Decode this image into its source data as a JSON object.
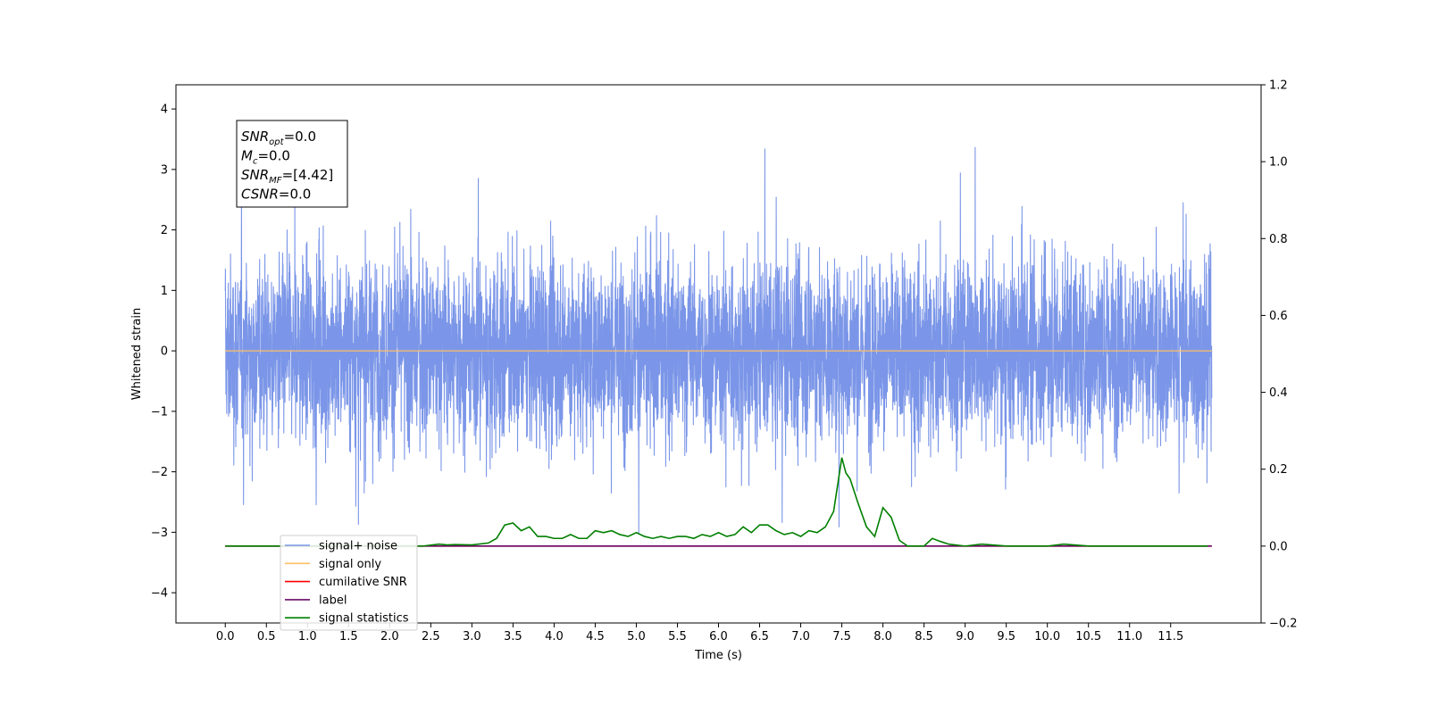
{
  "chart_data": {
    "type": "line",
    "xlabel": "Time (s)",
    "ylabel": "Whitened strain",
    "xlim": [
      -0.6,
      12.6
    ],
    "ylim": [
      -4.5,
      4.4
    ],
    "ylim_right": [
      -0.2,
      1.2
    ],
    "x_ticks": [
      "0.0",
      "0.5",
      "1.0",
      "1.5",
      "2.0",
      "2.5",
      "3.0",
      "3.5",
      "4.0",
      "4.5",
      "5.0",
      "5.5",
      "6.0",
      "6.5",
      "7.0",
      "7.5",
      "8.0",
      "8.5",
      "9.0",
      "9.5",
      "10.0",
      "10.5",
      "11.0",
      "11.5"
    ],
    "y_ticks_left": [
      "4",
      "3",
      "2",
      "1",
      "0",
      "−1",
      "−2",
      "−3",
      "−4"
    ],
    "y_ticks_right": [
      "1.2",
      "1.0",
      "0.8",
      "0.6",
      "0.4",
      "0.2",
      "0.0",
      "−0.2"
    ],
    "grid": false,
    "legend_position": "bottom-left",
    "annotation": {
      "lines": [
        {
          "base": "SNR",
          "sub": "opt",
          "value": "=0.0"
        },
        {
          "base": "M",
          "sub": "c",
          "value": "=0.0"
        },
        {
          "base": "SNR",
          "sub": "MF",
          "value": "=[4.42]"
        },
        {
          "base": "CSNR",
          "sub": "",
          "value": "=0.0"
        }
      ]
    },
    "series": [
      {
        "name": "signal+ noise",
        "color": "#7b96e8",
        "axis": "left",
        "note": "noise, amplitude approx ±2 to ±4",
        "x_range": [
          0.0,
          12.0
        ]
      },
      {
        "name": "signal only",
        "color": "#ffbf66",
        "axis": "left",
        "x": [
          0.0,
          12.0
        ],
        "values": [
          0.0,
          0.0
        ]
      },
      {
        "name": "cumilative SNR",
        "color": "#ff0000",
        "axis": "right",
        "x": [
          0.0,
          12.0
        ],
        "values": [
          0.0,
          0.0
        ]
      },
      {
        "name": "label",
        "color": "#6a0a6a",
        "axis": "right",
        "x": [
          0.0,
          12.0
        ],
        "values": [
          0.0,
          0.0
        ]
      },
      {
        "name": "signal statistics",
        "color": "#007f00",
        "axis": "right",
        "x": [
          0.0,
          2.4,
          2.6,
          2.7,
          2.8,
          3.0,
          3.2,
          3.3,
          3.4,
          3.5,
          3.6,
          3.7,
          3.8,
          3.9,
          4.0,
          4.1,
          4.2,
          4.3,
          4.4,
          4.5,
          4.6,
          4.7,
          4.8,
          4.9,
          5.0,
          5.1,
          5.2,
          5.3,
          5.4,
          5.5,
          5.6,
          5.7,
          5.8,
          5.9,
          6.0,
          6.1,
          6.2,
          6.3,
          6.4,
          6.5,
          6.6,
          6.7,
          6.8,
          6.9,
          7.0,
          7.1,
          7.2,
          7.3,
          7.4,
          7.5,
          7.55,
          7.6,
          7.7,
          7.8,
          7.9,
          8.0,
          8.1,
          8.2,
          8.3,
          8.4,
          8.5,
          8.6,
          8.7,
          8.8,
          9.0,
          9.2,
          9.5,
          10.0,
          10.2,
          10.5,
          11.0,
          11.5,
          11.95
        ],
        "values": [
          0.0,
          0.0,
          0.005,
          0.003,
          0.004,
          0.003,
          0.008,
          0.02,
          0.055,
          0.06,
          0.04,
          0.05,
          0.025,
          0.025,
          0.02,
          0.02,
          0.03,
          0.02,
          0.02,
          0.04,
          0.035,
          0.04,
          0.03,
          0.025,
          0.035,
          0.025,
          0.02,
          0.025,
          0.02,
          0.025,
          0.025,
          0.02,
          0.03,
          0.025,
          0.035,
          0.025,
          0.03,
          0.05,
          0.035,
          0.055,
          0.055,
          0.04,
          0.03,
          0.035,
          0.025,
          0.04,
          0.035,
          0.05,
          0.09,
          0.23,
          0.19,
          0.175,
          0.11,
          0.05,
          0.025,
          0.1,
          0.075,
          0.015,
          0.0,
          0.0,
          0.0,
          0.02,
          0.012,
          0.005,
          0.0,
          0.005,
          0.0,
          0.0,
          0.005,
          0.0,
          0.0,
          0.0,
          0.0
        ]
      }
    ]
  }
}
